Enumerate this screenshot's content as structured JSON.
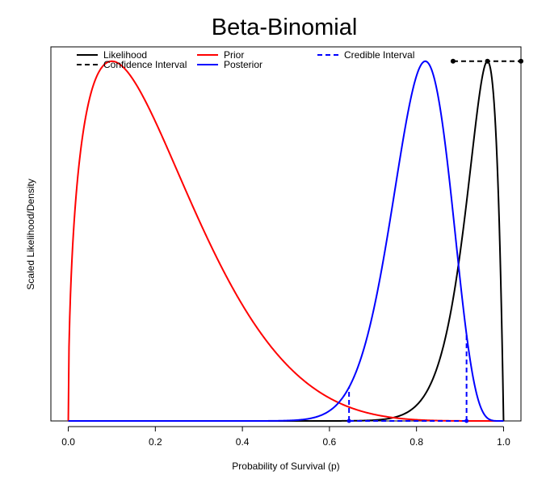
{
  "chart_data": {
    "type": "line",
    "title": "Beta-Binomial",
    "xlabel": "Probability of Survival (p)",
    "ylabel": "Scaled Likelihood/Density",
    "xlim": [
      -0.04,
      1.04
    ],
    "ylim": [
      0,
      1.04
    ],
    "xticks": [
      "0.0",
      "0.2",
      "0.4",
      "0.6",
      "0.8",
      "1.0"
    ],
    "xtick_values": [
      0,
      0.2,
      0.4,
      0.6,
      0.8,
      1.0
    ],
    "grid": false,
    "legend_position": "top",
    "legend": [
      {
        "label": "Likelihood",
        "color": "#000000",
        "dash": "solid"
      },
      {
        "label": "Confidence Interval",
        "color": "#000000",
        "dash": "dashed"
      },
      {
        "label": "Prior",
        "color": "#ff0000",
        "dash": "solid"
      },
      {
        "label": "Posterior",
        "color": "#0000ff",
        "dash": "solid"
      },
      {
        "label": "Credible Interval",
        "color": "#0000ff",
        "dash": "dashed"
      }
    ],
    "series": [
      {
        "name": "Likelihood",
        "color": "#000000",
        "distribution": "beta",
        "alpha": 27,
        "beta": 2
      },
      {
        "name": "Prior",
        "color": "#ff0000",
        "distribution": "beta",
        "alpha": 1.5,
        "beta": 5.5
      },
      {
        "name": "Posterior",
        "color": "#0000ff",
        "distribution": "beta",
        "alpha": 27,
        "beta": 6.7
      }
    ],
    "confidence_interval": {
      "lower": 0.884,
      "estimate": 0.963,
      "upper": 1.04,
      "y": 1.0
    },
    "credible_interval": {
      "lower": 0.645,
      "upper": 0.915
    }
  }
}
